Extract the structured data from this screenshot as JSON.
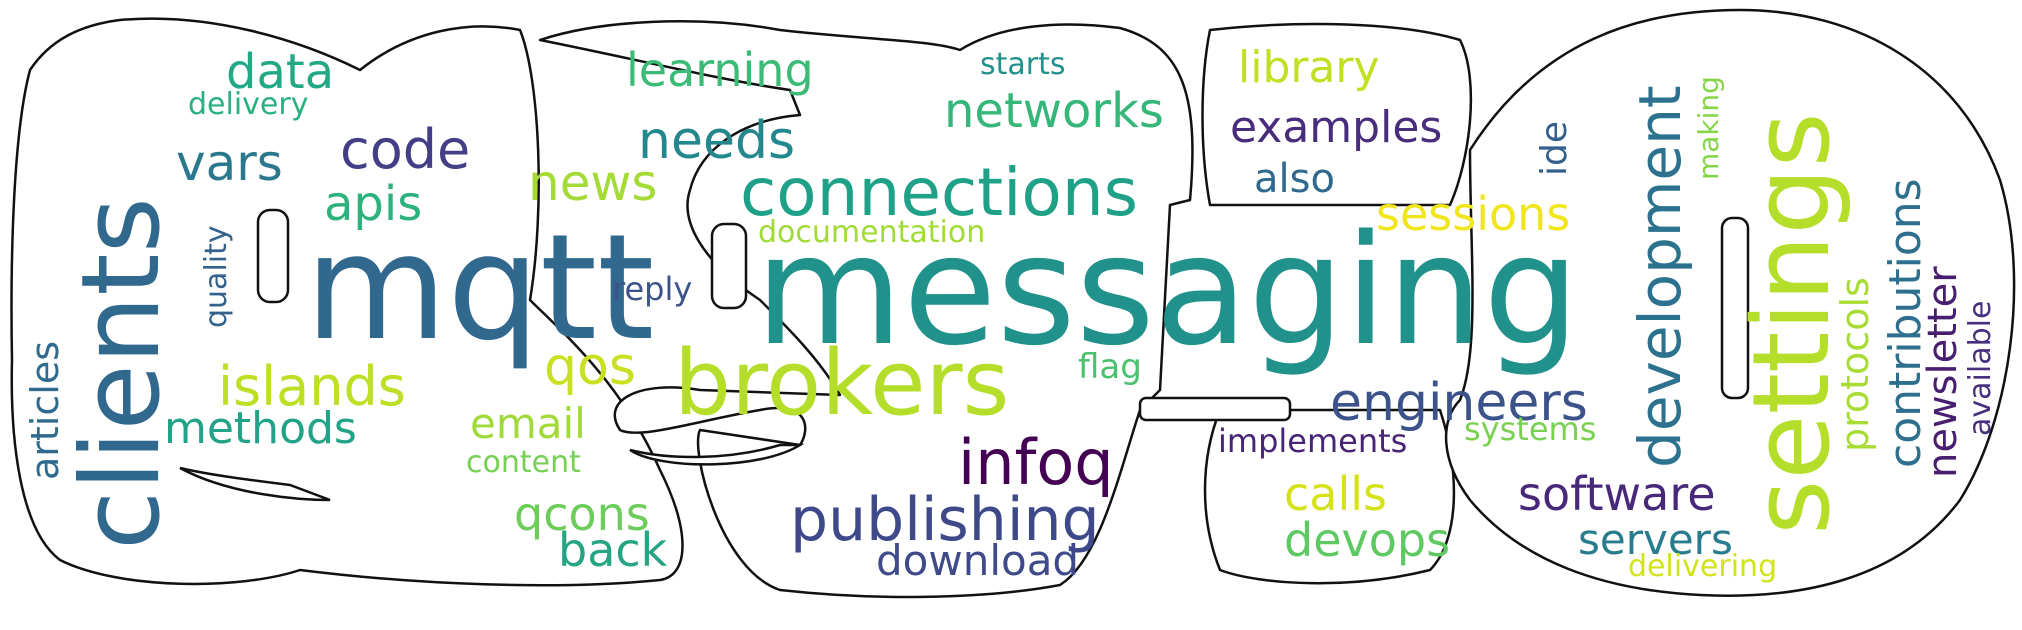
{
  "words": [
    {
      "text": "messaging",
      "color": "#21918c"
    },
    {
      "text": "mqtt",
      "color": "#31688e"
    },
    {
      "text": "clients",
      "color": "#31688e"
    },
    {
      "text": "settings",
      "color": "#b5de2b"
    },
    {
      "text": "brokers",
      "color": "#b5de2b"
    },
    {
      "text": "connections",
      "color": "#1fa187"
    },
    {
      "text": "development",
      "color": "#2c728e"
    },
    {
      "text": "publishing",
      "color": "#3e4989"
    },
    {
      "text": "infoq",
      "color": "#440154"
    },
    {
      "text": "engineers",
      "color": "#3b528b"
    },
    {
      "text": "software",
      "color": "#482878"
    },
    {
      "text": "code",
      "color": "#433e85"
    },
    {
      "text": "needs",
      "color": "#23888e"
    },
    {
      "text": "islands",
      "color": "#bddf26"
    },
    {
      "text": "data",
      "color": "#22a884"
    },
    {
      "text": "vars",
      "color": "#2a788e"
    },
    {
      "text": "apis",
      "color": "#2db27d"
    },
    {
      "text": "news",
      "color": "#a5db36"
    },
    {
      "text": "networks",
      "color": "#35b779"
    },
    {
      "text": "examples",
      "color": "#472d7b"
    },
    {
      "text": "learning",
      "color": "#3bbb75"
    },
    {
      "text": "library",
      "color": "#c2df23"
    },
    {
      "text": "sessions",
      "color": "#f1e51d"
    },
    {
      "text": "contributions",
      "color": "#2e6f8e"
    },
    {
      "text": "newsletter",
      "color": "#481f70"
    },
    {
      "text": "methods",
      "color": "#20a386"
    },
    {
      "text": "qos",
      "color": "#c8e020"
    },
    {
      "text": "email",
      "color": "#a0da39"
    },
    {
      "text": "calls",
      "color": "#d5e21a"
    },
    {
      "text": "devops",
      "color": "#5ec962"
    },
    {
      "text": "servers",
      "color": "#287c8e"
    },
    {
      "text": "qcons",
      "color": "#6ccd5a"
    },
    {
      "text": "back",
      "color": "#26a584"
    },
    {
      "text": "download",
      "color": "#3e4a89"
    },
    {
      "text": "also",
      "color": "#30698e"
    },
    {
      "text": "articles",
      "color": "#2f6b8e"
    },
    {
      "text": "protocols",
      "color": "#a8db34"
    },
    {
      "text": "available",
      "color": "#46307e"
    },
    {
      "text": "ide",
      "color": "#355f8d"
    },
    {
      "text": "making",
      "color": "#86d549"
    },
    {
      "text": "delivery",
      "color": "#2ab07f"
    },
    {
      "text": "quality",
      "color": "#33638d"
    },
    {
      "text": "reply",
      "color": "#3b528b"
    },
    {
      "text": "documentation",
      "color": "#a2da37"
    },
    {
      "text": "starts",
      "color": "#21918c"
    },
    {
      "text": "flag",
      "color": "#4ac16d"
    },
    {
      "text": "content",
      "color": "#75d054"
    },
    {
      "text": "implements",
      "color": "#482475"
    },
    {
      "text": "systems",
      "color": "#7ad151"
    },
    {
      "text": "delivering",
      "color": "#d2e21b"
    }
  ]
}
